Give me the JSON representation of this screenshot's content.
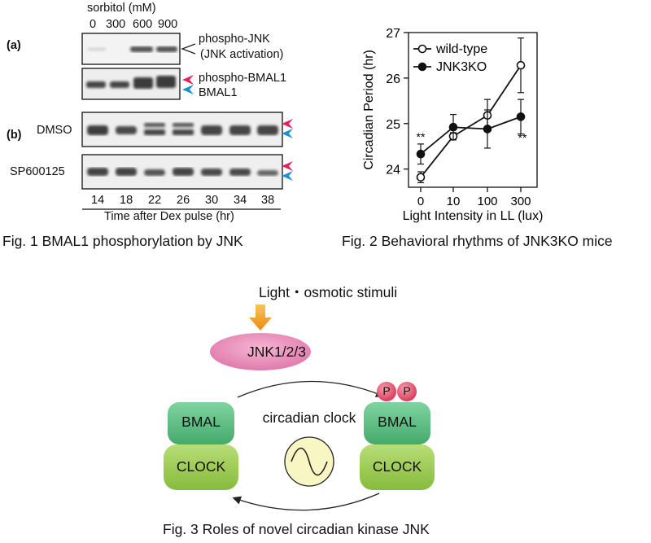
{
  "fig1": {
    "sorbitol_label": "sorbitol (mM)",
    "sorbitol_levels": [
      "0",
      "300",
      "600",
      "900"
    ],
    "panel_a": "(a)",
    "panel_b": "(b)",
    "pjnk_label": "phospho-JNK",
    "jnk_activation_label": "(JNK activation)",
    "phospho_bmal1_label": "phospho-BMAL1",
    "bmal1_label": "BMAL1",
    "dmso_label": "DMSO",
    "sp_label": "SP600125",
    "timepoints": [
      "14",
      "18",
      "22",
      "26",
      "30",
      "34",
      "38"
    ],
    "time_axis_label": "Time after Dex pulse (hr)",
    "caption": "Fig. 1 BMAL1 phosphorylation  by JNK",
    "colors": {
      "phospho_arrow": "#e0245e",
      "bmal1_arrow": "#1e8fd0"
    }
  },
  "fig2": {
    "caption": "Fig. 2  Behavioral rhythms of JNK3KO mice",
    "significance_left": "**",
    "significance_right": "**"
  },
  "chart_data": {
    "type": "line",
    "categories": [
      "0",
      "10",
      "100",
      "300"
    ],
    "xlabel": "Light Intensity in LL (lux)",
    "ylabel": "Circadian Period (hr)",
    "ylim": [
      23.6,
      27.0
    ],
    "yticks": [
      "24",
      "25",
      "26",
      "27"
    ],
    "legend_position": "top-left",
    "grid": false,
    "series": [
      {
        "name": "wild-type",
        "marker": "open-circle",
        "values": [
          23.82,
          24.72,
          25.18,
          26.28
        ],
        "errors": [
          0.12,
          0.08,
          0.35,
          0.6
        ]
      },
      {
        "name": "JNK3KO",
        "marker": "filled-circle",
        "values": [
          24.33,
          24.92,
          24.88,
          25.15
        ],
        "errors": [
          0.22,
          0.28,
          0.42,
          0.38
        ]
      }
    ]
  },
  "fig3": {
    "stimuli_label": "Light・osmotic stimuli",
    "jnk_label": "JNK1/2/3",
    "bmal_label": "BMAL",
    "clock_label": "CLOCK",
    "clock_center_label": "circadian clock",
    "phospho_p": "P",
    "caption": "Fig. 3  Roles of novel circadian kinase JNK",
    "colors": {
      "jnk": "#e98bb8",
      "bmal": "#5dbf84",
      "clock": "#9fcc55",
      "p": "#e5546f",
      "clock_face": "#f8f6c2",
      "stimulus_arrow": "#f2a11a"
    }
  }
}
